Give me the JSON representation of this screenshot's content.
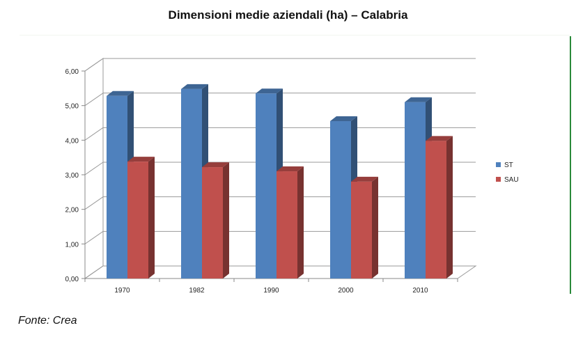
{
  "title": "Dimensioni medie aziendali (ha) – Calabria",
  "source": "Fonte: Crea",
  "colors": {
    "ST": "#4f81bd",
    "SAU": "#c0504d"
  },
  "chart_data": {
    "type": "bar",
    "title": "Dimensioni medie aziendali (ha) – Calabria",
    "categories": [
      "1970",
      "1982",
      "1990",
      "2000",
      "2010"
    ],
    "series": [
      {
        "name": "ST",
        "values": [
          5.28,
          5.48,
          5.35,
          4.55,
          5.1
        ]
      },
      {
        "name": "SAU",
        "values": [
          3.38,
          3.22,
          3.1,
          2.8,
          3.98
        ]
      }
    ],
    "y_ticks": [
      "0,00",
      "1,00",
      "2,00",
      "3,00",
      "4,00",
      "5,00",
      "6,00"
    ],
    "ylim": [
      0,
      6
    ],
    "grid": true,
    "legend_position": "right",
    "style": "3d-clustered-column"
  }
}
